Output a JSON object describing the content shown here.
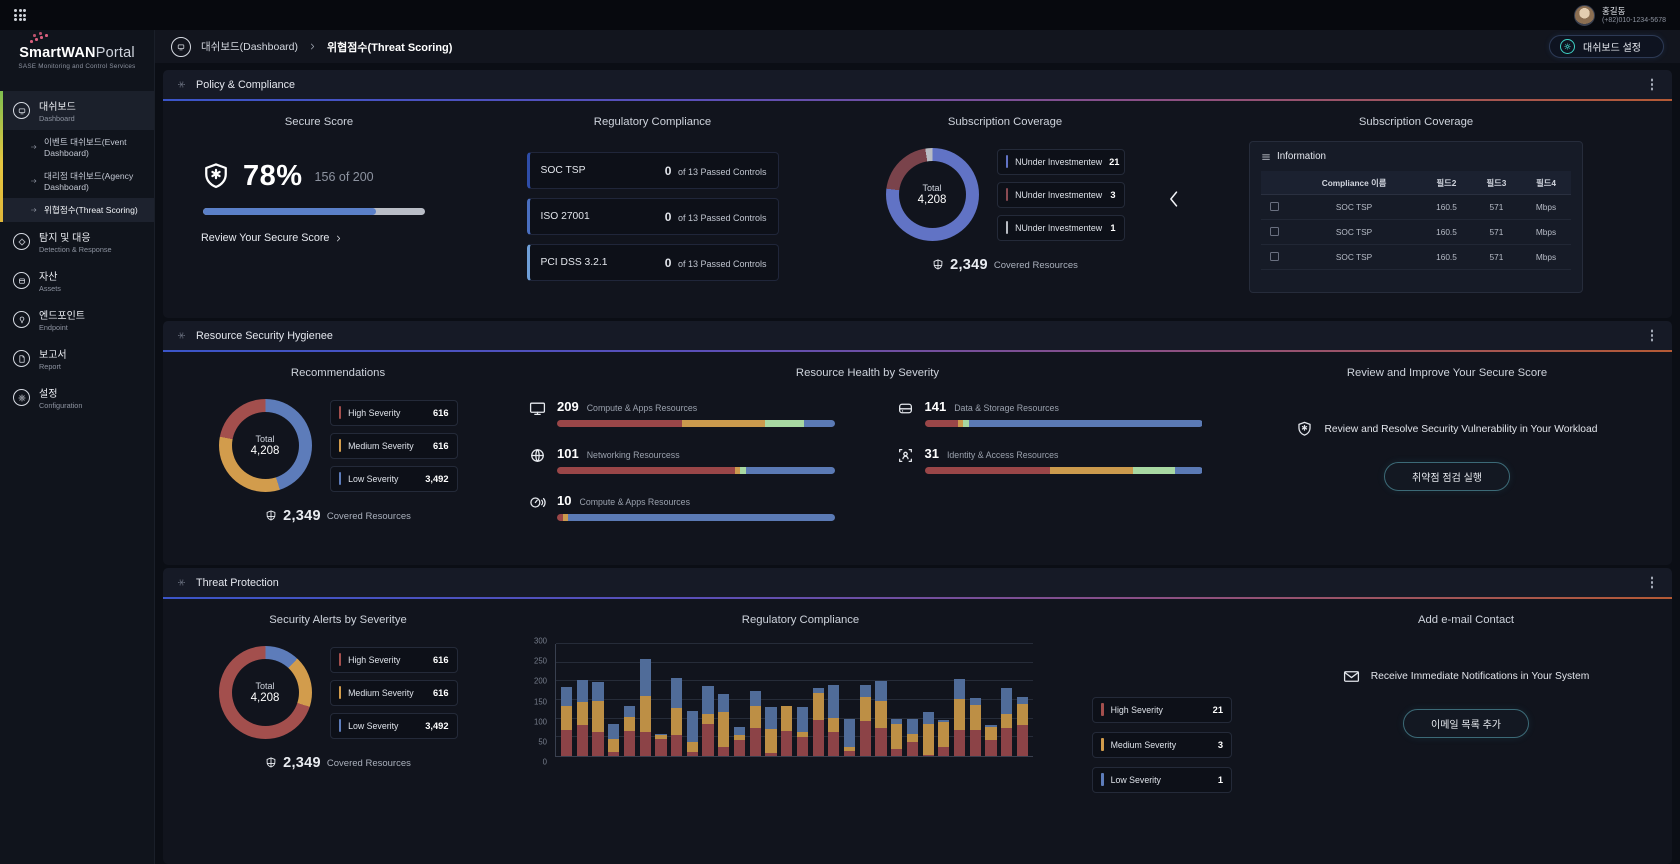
{
  "topbar": {
    "user": {
      "name": "홍길동",
      "phone": "(+82)010-1234-5678"
    }
  },
  "sidebar": {
    "logo_main": "SmartWAN",
    "logo_suffix": "Portal",
    "logo_subtitle": "SASE Monitoring and Control Services",
    "items": [
      {
        "label": "대쉬보드",
        "sublabel": "Dashboard",
        "icon": "dashboard-icon",
        "active": true,
        "active_child": 2,
        "children": [
          "이벤트 대쉬보드(Event Dashboard)",
          "대리점 대쉬보드(Agency Dashboard)",
          "위협점수(Threat Scoring)"
        ]
      },
      {
        "label": "탐지 및 대응",
        "sublabel": "Detection & Response",
        "icon": "detection-icon"
      },
      {
        "label": "자산",
        "sublabel": "Assets",
        "icon": "assets-icon"
      },
      {
        "label": "엔드포인트",
        "sublabel": "Endpoint",
        "icon": "endpoint-icon"
      },
      {
        "label": "보고서",
        "sublabel": "Report",
        "icon": "report-icon"
      },
      {
        "label": "설정",
        "sublabel": "Configuration",
        "icon": "configuration-icon"
      }
    ]
  },
  "header": {
    "crumb1": "대쉬보드(Dashboard)",
    "crumb2": "위협점수(Threat Scoring)",
    "settings_button": "대쉬보드 설정"
  },
  "policy": {
    "title": "Policy & Compliance",
    "secure_score": {
      "title": "Secure Score",
      "percent": "78%",
      "fraction": "156 of 200",
      "progress_pct": 78,
      "link": "Review Your Secure Score"
    },
    "regulatory": {
      "title": "Regulatory Compliance",
      "cards": [
        {
          "name": "SOC TSP",
          "value": "0",
          "rest": "of 13 Passed Controls",
          "accent": "#2e4da8"
        },
        {
          "name": "ISO 27001",
          "value": "0",
          "rest": "of 13 Passed Controls",
          "accent": "#4a6fc0"
        },
        {
          "name": "PCI DSS 3.2.1",
          "value": "0",
          "rest": "of 13 Passed Controls",
          "accent": "#6f9fd8"
        }
      ]
    },
    "subscription": {
      "title": "Subscription Coverage",
      "total_label": "Total",
      "total_value": "4,208",
      "donut": [
        {
          "color": "#6173c5",
          "pct": 77
        },
        {
          "color": "#7a434b",
          "pct": 20.5
        },
        {
          "color": "#b9bcc3",
          "pct": 2.5
        }
      ],
      "legend": [
        {
          "label": "NUnder Investmentew",
          "value": "21",
          "color": "#6173c5"
        },
        {
          "label": "NUnder Investmentew",
          "value": "3",
          "color": "#8a4a52"
        },
        {
          "label": "NUnder Investmentew",
          "value": "1",
          "color": "#b9bcc3"
        }
      ],
      "covered_value": "2,349",
      "covered_label": "Covered Resources"
    },
    "information": {
      "title": "Subscription Coverage",
      "panel_title": "Information",
      "columns": [
        "Compliance 이름",
        "필드2",
        "필드3",
        "필드4"
      ],
      "rows": [
        [
          "SOC TSP",
          "160.5",
          "571",
          "Mbps"
        ],
        [
          "SOC TSP",
          "160.5",
          "571",
          "Mbps"
        ],
        [
          "SOC TSP",
          "160.5",
          "571",
          "Mbps"
        ]
      ]
    }
  },
  "hygiene": {
    "title": "Resource Security Hygienee",
    "recommendations": {
      "title": "Recommendations",
      "total_label": "Total",
      "total_value": "4,208",
      "donut": [
        {
          "color": "#5d7cba",
          "pct": 45
        },
        {
          "color": "#d29c4c",
          "pct": 33
        },
        {
          "color": "#a34f4d",
          "pct": 22
        }
      ],
      "legend": [
        {
          "label": "High Severity",
          "value": "616",
          "color": "#a34f4d"
        },
        {
          "label": "Medium Severity",
          "value": "616",
          "color": "#d29c4c"
        },
        {
          "label": "Low Severity",
          "value": "3,492",
          "color": "#5d7cba"
        }
      ],
      "covered_value": "2,349",
      "covered_label": "Covered Resources"
    },
    "resource_health": {
      "title": "Resource Health by Severity",
      "segment_colors": [
        "#9a4648",
        "#cb9a4d",
        "#a8d8a2",
        "#5b7ab5"
      ],
      "items": [
        {
          "value": "209",
          "label": "Compute & Apps Resources",
          "icon": "monitor-icon",
          "segments": [
            45,
            30,
            14,
            11
          ]
        },
        {
          "value": "141",
          "label": "Data & Storage Resources",
          "icon": "storage-icon",
          "segments": [
            12,
            2,
            2,
            84
          ]
        },
        {
          "value": "101",
          "label": "Networking Resourcess",
          "icon": "globe-icon",
          "segments": [
            64,
            2,
            2,
            32
          ]
        },
        {
          "value": "31",
          "label": "Identity & Access Resources",
          "icon": "identity-icon",
          "segments": [
            45,
            30,
            15,
            10
          ]
        },
        {
          "value": "10",
          "label": "Compute & Apps Resources",
          "icon": "gauge-icon",
          "segments": [
            2,
            2,
            0,
            96
          ]
        }
      ]
    },
    "review": {
      "title": "Review and Improve Your Secure Score",
      "text": "Review and Resolve Security Vulnerability in Your Workload",
      "button": "취약점 점검 실행"
    }
  },
  "threat": {
    "title": "Threat Protection",
    "alerts": {
      "title": "Security Alerts by Severitye",
      "total_label": "Total",
      "total_value": "4,208",
      "donut": [
        {
          "color": "#5d7cba",
          "pct": 12
        },
        {
          "color": "#d29c4c",
          "pct": 18
        },
        {
          "color": "#a34f4d",
          "pct": 70
        }
      ],
      "legend": [
        {
          "label": "High Severity",
          "value": "616",
          "color": "#a34f4d"
        },
        {
          "label": "Medium Severity",
          "value": "616",
          "color": "#d29c4c"
        },
        {
          "label": "Low Severity",
          "value": "3,492",
          "color": "#5d7cba"
        }
      ],
      "covered_value": "2,349",
      "covered_label": "Covered Resources"
    },
    "chart_legend": [
      {
        "label": "High Severity",
        "value": "21",
        "color": "#a34f4d"
      },
      {
        "label": "Medium Severity",
        "value": "3",
        "color": "#d29c4c"
      },
      {
        "label": "Low Severity",
        "value": "1",
        "color": "#5d7cba"
      }
    ],
    "email": {
      "title": "Add e-mail Contact",
      "text": "Receive Immediate Notifications in Your System",
      "button": "이메일 목록 추가"
    }
  },
  "chart_data": {
    "type": "bar",
    "stacked": true,
    "title": "Regulatory Compliance",
    "ylim": [
      0,
      300
    ],
    "yticks": [
      0,
      50,
      100,
      150,
      200,
      250,
      300
    ],
    "series": [
      {
        "name": "High Severity",
        "color": "#8c4347",
        "values": [
          70,
          83,
          65,
          10,
          67,
          65,
          45,
          55,
          12,
          85,
          23,
          43,
          75,
          8,
          67,
          50,
          96,
          65,
          13,
          93,
          75,
          20,
          37,
          2,
          24,
          71,
          71,
          42,
          76,
          83
        ]
      },
      {
        "name": "Medium Severity",
        "color": "#bd8f45",
        "values": [
          65,
          62,
          83,
          35,
          38,
          95,
          10,
          73,
          26,
          27,
          96,
          12,
          58,
          65,
          68,
          15,
          73,
          38,
          12,
          65,
          73,
          65,
          23,
          83,
          68,
          81,
          65,
          37,
          36,
          57
        ]
      },
      {
        "name": "Low Severity",
        "color": "#506c99",
        "values": [
          50,
          58,
          49,
          40,
          30,
          100,
          5,
          80,
          82,
          75,
          46,
          24,
          40,
          59,
          0,
          65,
          13,
          88,
          75,
          33,
          52,
          15,
          38,
          34,
          4,
          55,
          19,
          5,
          69,
          17
        ]
      }
    ]
  }
}
